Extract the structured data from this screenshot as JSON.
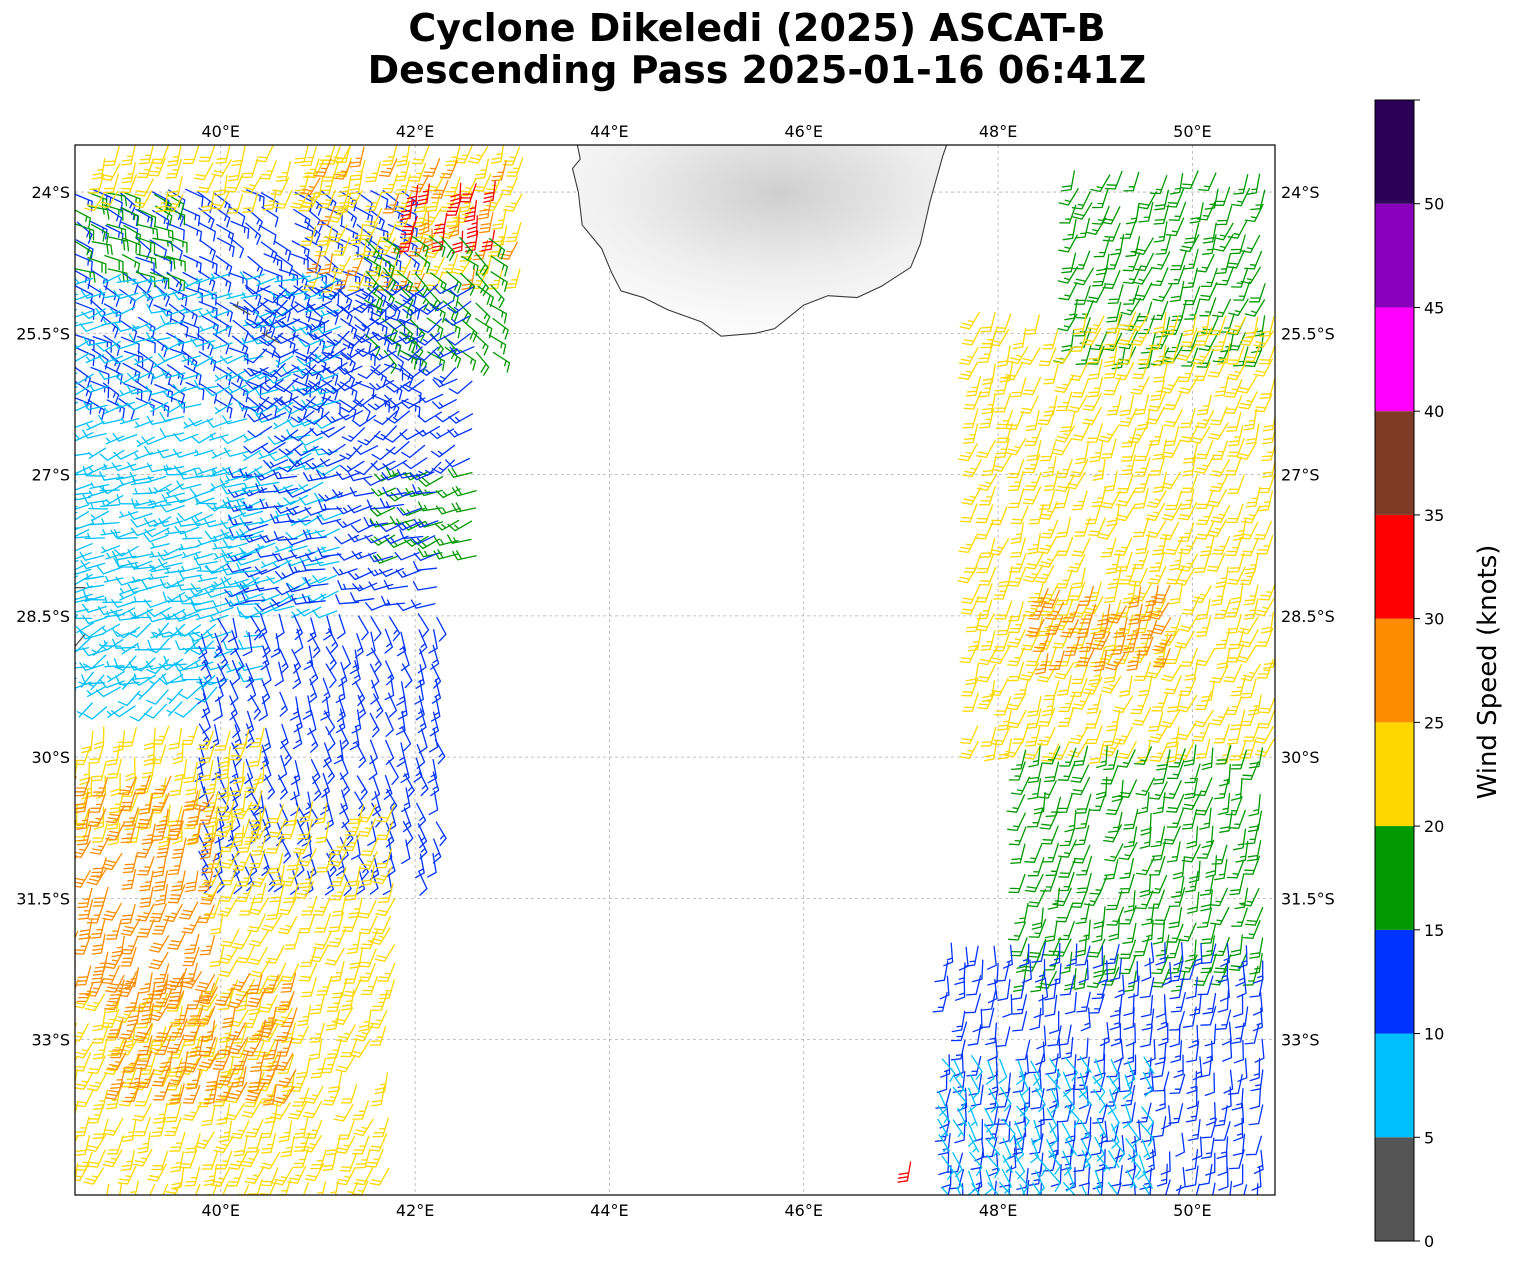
{
  "figure": {
    "title_line1": "Cyclone Dikeledi (2025) ASCAT-B",
    "title_line2": "Descending Pass 2025-01-16 06:41Z"
  },
  "map": {
    "lon_range": [
      38.5,
      50.85
    ],
    "lat_range": [
      -34.65,
      -23.5
    ],
    "gridlines": true,
    "lon_ticks": [
      40,
      42,
      44,
      46,
      48,
      50
    ],
    "lat_ticks": [
      -24,
      -25.5,
      -27,
      -28.5,
      -30,
      -31.5,
      -33
    ],
    "lon_tick_labels": [
      "40°E",
      "42°E",
      "44°E",
      "46°E",
      "48°E",
      "50°E"
    ],
    "lat_tick_labels": [
      "24°S",
      "25.5°S",
      "27°S",
      "28.5°S",
      "30°S",
      "31.5°S",
      "33°S"
    ],
    "land_name": "Madagascar (southern tip)",
    "coastline": [
      [
        43.67,
        -23.5
      ],
      [
        43.7,
        -23.65
      ],
      [
        43.62,
        -23.75
      ],
      [
        43.68,
        -24.0
      ],
      [
        43.72,
        -24.35
      ],
      [
        43.92,
        -24.6
      ],
      [
        44.02,
        -24.85
      ],
      [
        44.12,
        -25.05
      ],
      [
        44.35,
        -25.12
      ],
      [
        44.6,
        -25.25
      ],
      [
        44.95,
        -25.38
      ],
      [
        45.15,
        -25.53
      ],
      [
        45.5,
        -25.5
      ],
      [
        45.7,
        -25.45
      ],
      [
        46.0,
        -25.2
      ],
      [
        46.25,
        -25.1
      ],
      [
        46.55,
        -25.12
      ],
      [
        46.8,
        -25.0
      ],
      [
        47.1,
        -24.8
      ],
      [
        47.2,
        -24.55
      ],
      [
        47.3,
        -24.1
      ],
      [
        47.43,
        -23.62
      ],
      [
        47.47,
        -23.5
      ]
    ],
    "barb_color_rule": "colored by wind speed band"
  },
  "colorbar": {
    "label": "Wind Speed (knots)",
    "bounds": [
      0,
      5,
      10,
      15,
      20,
      25,
      30,
      35,
      40,
      45,
      50,
      55
    ],
    "tick_labels": [
      "0",
      "5",
      "10",
      "15",
      "20",
      "25",
      "30",
      "35",
      "40",
      "45",
      "50"
    ],
    "colors": [
      "#555555",
      "#00bfff",
      "#0033ff",
      "#009900",
      "#ffd700",
      "#ff8c00",
      "#ff0000",
      "#7f3b26",
      "#ff00ff",
      "#8800bb",
      "#2b0057"
    ]
  },
  "wind_swaths": [
    {
      "lon": [
        38.5,
        42.0
      ],
      "lat": [
        -26.3,
        -24.0
      ],
      "speed": 13,
      "dir_deg": 120
    },
    {
      "lon": [
        38.5,
        39.6
      ],
      "lat": [
        -25.0,
        -24.0
      ],
      "speed": 17,
      "dir_deg": 110
    },
    {
      "lon": [
        38.8,
        41.5
      ],
      "lat": [
        -24.1,
        -23.5
      ],
      "speed": 22,
      "dir_deg": 200
    },
    {
      "lon": [
        41.0,
        43.2
      ],
      "lat": [
        -24.9,
        -23.5
      ],
      "speed": 24,
      "dir_deg": 200
    },
    {
      "lon": [
        42.0,
        42.8
      ],
      "lat": [
        -24.5,
        -23.9
      ],
      "speed": 31,
      "dir_deg": 190
    },
    {
      "lon": [
        41.5,
        42.8
      ],
      "lat": [
        -25.8,
        -24.5
      ],
      "speed": 17,
      "dir_deg": 130
    },
    {
      "lon": [
        38.5,
        41.3
      ],
      "lat": [
        -28.5,
        -24.9
      ],
      "speed": 8,
      "dir_deg": 250
    },
    {
      "lon": [
        40.5,
        42.6
      ],
      "lat": [
        -26.9,
        -25.0
      ],
      "speed": 12,
      "dir_deg": 235
    },
    {
      "lon": [
        41.8,
        42.6
      ],
      "lat": [
        -28.0,
        -27.0
      ],
      "speed": 17,
      "dir_deg": 250
    },
    {
      "lon": [
        40.3,
        42.3
      ],
      "lat": [
        -28.5,
        -27.0
      ],
      "speed": 12,
      "dir_deg": 255
    },
    {
      "lon": [
        38.5,
        40.5
      ],
      "lat": [
        -29.3,
        -27.0
      ],
      "speed": 8,
      "dir_deg": 260
    },
    {
      "lon": [
        39.8,
        42.3
      ],
      "lat": [
        -31.3,
        -28.5
      ],
      "speed": 13,
      "dir_deg": 160
    },
    {
      "lon": [
        38.5,
        40.0
      ],
      "lat": [
        -29.6,
        -28.6
      ],
      "speed": 8,
      "dir_deg": 230
    },
    {
      "lon": [
        38.5,
        40.5
      ],
      "lat": [
        -30.8,
        -29.7
      ],
      "speed": 22,
      "dir_deg": 190
    },
    {
      "lon": [
        38.5,
        40.0
      ],
      "lat": [
        -32.5,
        -30.2
      ],
      "speed": 27,
      "dir_deg": 200
    },
    {
      "lon": [
        40.0,
        41.9
      ],
      "lat": [
        -32.5,
        -30.5
      ],
      "speed": 22,
      "dir_deg": 200
    },
    {
      "lon": [
        38.5,
        41.8
      ],
      "lat": [
        -34.65,
        -32.5
      ],
      "speed": 23,
      "dir_deg": 200
    },
    {
      "lon": [
        39.0,
        40.8
      ],
      "lat": [
        -33.6,
        -32.3
      ],
      "speed": 27,
      "dir_deg": 200
    },
    {
      "lon": [
        48.8,
        50.85
      ],
      "lat": [
        -25.8,
        -23.8
      ],
      "speed": 17,
      "dir_deg": 200
    },
    {
      "lon": [
        47.8,
        50.85
      ],
      "lat": [
        -30.0,
        -25.3
      ],
      "speed": 22,
      "dir_deg": 200
    },
    {
      "lon": [
        48.5,
        49.8
      ],
      "lat": [
        -29.0,
        -28.2
      ],
      "speed": 27,
      "dir_deg": 200
    },
    {
      "lon": [
        48.3,
        50.85
      ],
      "lat": [
        -32.3,
        -29.9
      ],
      "speed": 17,
      "dir_deg": 195
    },
    {
      "lon": [
        47.5,
        50.85
      ],
      "lat": [
        -34.65,
        -32.0
      ],
      "speed": 12,
      "dir_deg": 185
    },
    {
      "lon": [
        47.4,
        49.5
      ],
      "lat": [
        -34.65,
        -33.2
      ],
      "speed": 8,
      "dir_deg": 150
    }
  ],
  "isolated_barbs": [
    {
      "lon": 40.3,
      "lat": -25.3,
      "speed": 4,
      "dir_deg": 300
    },
    {
      "lon": 40.6,
      "lat": -25.6,
      "speed": 4,
      "dir_deg": 300
    },
    {
      "lon": 38.6,
      "lat": -28.2,
      "speed": 4,
      "dir_deg": 270
    },
    {
      "lon": 38.6,
      "lat": -28.7,
      "speed": 4,
      "dir_deg": 220
    },
    {
      "lon": 47.1,
      "lat": -34.3,
      "speed": 31,
      "dir_deg": 190
    }
  ]
}
